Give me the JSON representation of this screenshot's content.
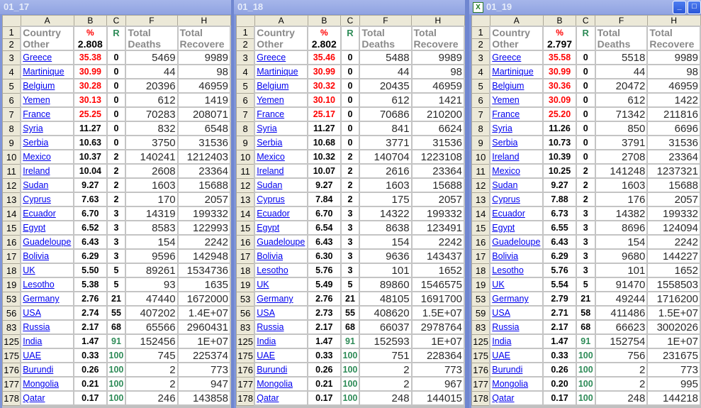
{
  "columns": [
    "A",
    "B",
    "C",
    "F",
    "H"
  ],
  "headers": {
    "country_line1": "Country",
    "country_line2": "Other",
    "pct_label": "%",
    "rank_label": "R",
    "deaths_line1": "Total",
    "deaths_line2": "Deaths",
    "rec_line1": "Total",
    "rec_line2": "Recovere"
  },
  "colors": {
    "high_pct": "#ff0000",
    "rank_top": "#2e8b57",
    "link": "#0000ee"
  },
  "windows": [
    {
      "title": "01_17",
      "pct_total": "2.808",
      "rows": [
        [
          "3",
          "Greece",
          "35.38",
          "0",
          "5469",
          "9989"
        ],
        [
          "4",
          "Martinique",
          "30.99",
          "0",
          "44",
          "98"
        ],
        [
          "5",
          "Belgium",
          "30.28",
          "0",
          "20396",
          "46959"
        ],
        [
          "6",
          "Yemen",
          "30.13",
          "0",
          "612",
          "1419"
        ],
        [
          "7",
          "France",
          "25.25",
          "0",
          "70283",
          "208071"
        ],
        [
          "8",
          "Syria",
          "11.27",
          "0",
          "832",
          "6548"
        ],
        [
          "9",
          "Serbia",
          "10.63",
          "0",
          "3750",
          "31536"
        ],
        [
          "10",
          "Mexico",
          "10.37",
          "2",
          "140241",
          "1212403"
        ],
        [
          "11",
          "Ireland",
          "10.04",
          "2",
          "2608",
          "23364"
        ],
        [
          "12",
          "Sudan",
          "9.27",
          "2",
          "1603",
          "15688"
        ],
        [
          "13",
          "Cyprus",
          "7.63",
          "2",
          "170",
          "2057"
        ],
        [
          "14",
          "Ecuador",
          "6.70",
          "3",
          "14319",
          "199332"
        ],
        [
          "15",
          "Egypt",
          "6.52",
          "3",
          "8583",
          "122993"
        ],
        [
          "16",
          "Guadeloupe",
          "6.43",
          "3",
          "154",
          "2242"
        ],
        [
          "17",
          "Bolivia",
          "6.29",
          "3",
          "9596",
          "142948"
        ],
        [
          "18",
          "UK",
          "5.50",
          "5",
          "89261",
          "1534736"
        ],
        [
          "19",
          "Lesotho",
          "5.38",
          "5",
          "93",
          "1635"
        ],
        [
          "53",
          "Germany",
          "2.76",
          "21",
          "47440",
          "1672000"
        ],
        [
          "56",
          "USA",
          "2.74",
          "55",
          "407202",
          "1.4E+07"
        ],
        [
          "83",
          "Russia",
          "2.17",
          "68",
          "65566",
          "2960431"
        ],
        [
          "125",
          "India",
          "1.47",
          "91",
          "152456",
          "1E+07"
        ],
        [
          "175",
          "UAE",
          "0.33",
          "100",
          "745",
          "225374"
        ],
        [
          "176",
          "Burundi",
          "0.26",
          "100",
          "2",
          "773"
        ],
        [
          "177",
          "Mongolia",
          "0.21",
          "100",
          "2",
          "947"
        ],
        [
          "178",
          "Qatar",
          "0.17",
          "100",
          "246",
          "143858"
        ]
      ]
    },
    {
      "title": "01_18",
      "pct_total": "2.802",
      "rows": [
        [
          "3",
          "Greece",
          "35.46",
          "0",
          "5488",
          "9989"
        ],
        [
          "4",
          "Martinique",
          "30.99",
          "0",
          "44",
          "98"
        ],
        [
          "5",
          "Belgium",
          "30.32",
          "0",
          "20435",
          "46959"
        ],
        [
          "6",
          "Yemen",
          "30.10",
          "0",
          "612",
          "1421"
        ],
        [
          "7",
          "France",
          "25.17",
          "0",
          "70686",
          "210200"
        ],
        [
          "8",
          "Syria",
          "11.27",
          "0",
          "841",
          "6624"
        ],
        [
          "9",
          "Serbia",
          "10.68",
          "0",
          "3771",
          "31536"
        ],
        [
          "10",
          "Mexico",
          "10.32",
          "2",
          "140704",
          "1223108"
        ],
        [
          "11",
          "Ireland",
          "10.07",
          "2",
          "2616",
          "23364"
        ],
        [
          "12",
          "Sudan",
          "9.27",
          "2",
          "1603",
          "15688"
        ],
        [
          "13",
          "Cyprus",
          "7.84",
          "2",
          "175",
          "2057"
        ],
        [
          "14",
          "Ecuador",
          "6.70",
          "3",
          "14322",
          "199332"
        ],
        [
          "15",
          "Egypt",
          "6.54",
          "3",
          "8638",
          "123491"
        ],
        [
          "16",
          "Guadeloupe",
          "6.43",
          "3",
          "154",
          "2242"
        ],
        [
          "17",
          "Bolivia",
          "6.30",
          "3",
          "9636",
          "143437"
        ],
        [
          "18",
          "Lesotho",
          "5.76",
          "3",
          "101",
          "1652"
        ],
        [
          "19",
          "UK",
          "5.49",
          "5",
          "89860",
          "1546575"
        ],
        [
          "53",
          "Germany",
          "2.76",
          "21",
          "48105",
          "1691700"
        ],
        [
          "56",
          "USA",
          "2.73",
          "55",
          "408620",
          "1.5E+07"
        ],
        [
          "83",
          "Russia",
          "2.17",
          "68",
          "66037",
          "2978764"
        ],
        [
          "125",
          "India",
          "1.47",
          "91",
          "152593",
          "1E+07"
        ],
        [
          "175",
          "UAE",
          "0.33",
          "100",
          "751",
          "228364"
        ],
        [
          "176",
          "Burundi",
          "0.26",
          "100",
          "2",
          "773"
        ],
        [
          "177",
          "Mongolia",
          "0.21",
          "100",
          "2",
          "967"
        ],
        [
          "178",
          "Qatar",
          "0.17",
          "100",
          "248",
          "144015"
        ]
      ]
    },
    {
      "title": "01_19",
      "pct_total": "2.797",
      "active": true,
      "rows": [
        [
          "3",
          "Greece",
          "35.58",
          "0",
          "5518",
          "9989"
        ],
        [
          "4",
          "Martinique",
          "30.99",
          "0",
          "44",
          "98"
        ],
        [
          "5",
          "Belgium",
          "30.36",
          "0",
          "20472",
          "46959"
        ],
        [
          "6",
          "Yemen",
          "30.09",
          "0",
          "612",
          "1422"
        ],
        [
          "7",
          "France",
          "25.20",
          "0",
          "71342",
          "211816"
        ],
        [
          "8",
          "Syria",
          "11.26",
          "0",
          "850",
          "6696"
        ],
        [
          "9",
          "Serbia",
          "10.73",
          "0",
          "3791",
          "31536"
        ],
        [
          "10",
          "Ireland",
          "10.39",
          "0",
          "2708",
          "23364"
        ],
        [
          "11",
          "Mexico",
          "10.25",
          "2",
          "141248",
          "1237321"
        ],
        [
          "12",
          "Sudan",
          "9.27",
          "2",
          "1603",
          "15688"
        ],
        [
          "13",
          "Cyprus",
          "7.88",
          "2",
          "176",
          "2057"
        ],
        [
          "14",
          "Ecuador",
          "6.73",
          "3",
          "14382",
          "199332"
        ],
        [
          "15",
          "Egypt",
          "6.55",
          "3",
          "8696",
          "124094"
        ],
        [
          "16",
          "Guadeloupe",
          "6.43",
          "3",
          "154",
          "2242"
        ],
        [
          "17",
          "Bolivia",
          "6.29",
          "3",
          "9680",
          "144227"
        ],
        [
          "18",
          "Lesotho",
          "5.76",
          "3",
          "101",
          "1652"
        ],
        [
          "19",
          "UK",
          "5.54",
          "5",
          "91470",
          "1558503"
        ],
        [
          "53",
          "Germany",
          "2.79",
          "21",
          "49244",
          "1716200"
        ],
        [
          "59",
          "USA",
          "2.71",
          "58",
          "411486",
          "1.5E+07"
        ],
        [
          "83",
          "Russia",
          "2.17",
          "68",
          "66623",
          "3002026"
        ],
        [
          "125",
          "India",
          "1.47",
          "91",
          "152754",
          "1E+07"
        ],
        [
          "175",
          "UAE",
          "0.33",
          "100",
          "756",
          "231675"
        ],
        [
          "176",
          "Burundi",
          "0.26",
          "100",
          "2",
          "773"
        ],
        [
          "177",
          "Mongolia",
          "0.20",
          "100",
          "2",
          "995"
        ],
        [
          "178",
          "Qatar",
          "0.17",
          "100",
          "248",
          "144218"
        ]
      ]
    }
  ]
}
